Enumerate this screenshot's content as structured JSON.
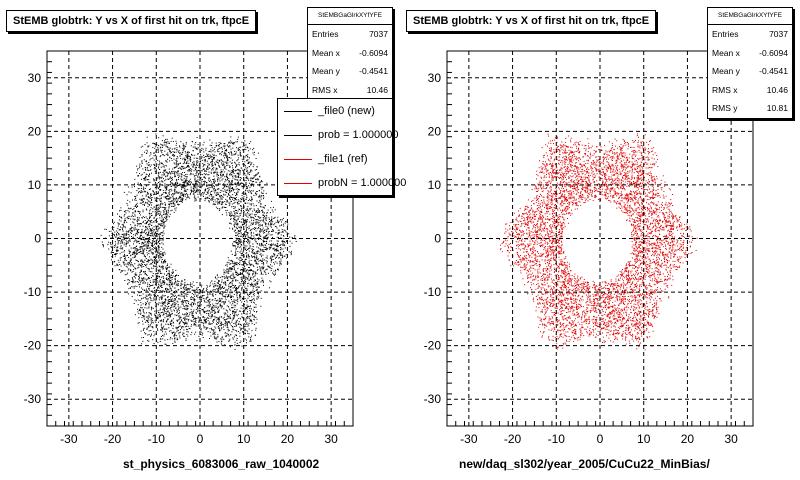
{
  "colors": {
    "ref_series": "#000000",
    "new_series": "#e00000",
    "frame": "#000000",
    "grid": "#000000"
  },
  "panels": [
    {
      "title": "StEMB globtrk: Y vs X of first hit on trk, ftpcE",
      "stats": {
        "header": "StEMBGaGlrkXYfYFE",
        "rows": [
          {
            "label": "Entries",
            "value": "7037"
          },
          {
            "label": "Mean x",
            "value": "-0.6094"
          },
          {
            "label": "Mean y",
            "value": "-0.4541"
          },
          {
            "label": "RMS x",
            "value": "10.46"
          }
        ]
      },
      "xlabel": "st_physics_6083006_raw_1040002",
      "legend": [
        {
          "label": "_file0 (new)",
          "color": "#000000"
        },
        {
          "label": "prob = 1.000000",
          "color": "#000000"
        },
        {
          "label": "_file1 (ref)",
          "color": "#e00000"
        },
        {
          "label": "probN = 1.000000",
          "color": "#e00000"
        }
      ]
    },
    {
      "title": "StEMB globtrk: Y vs X of first hit on trk, ftpcE",
      "stats": {
        "header": "StEMBGaGlrkXYfYFE",
        "rows": [
          {
            "label": "Entries",
            "value": "7037"
          },
          {
            "label": "Mean x",
            "value": "-0.6094"
          },
          {
            "label": "Mean y",
            "value": "-0.4541"
          },
          {
            "label": "RMS x",
            "value": "10.46"
          },
          {
            "label": "RMS y",
            "value": "10.81"
          }
        ]
      },
      "xlabel": "new/daq_sl302/year_2005/CuCu22_MinBias/"
    }
  ],
  "chart_data": [
    {
      "type": "scatter",
      "title": "StEMB globtrk: Y vs X of first hit on trk, ftpcE",
      "xlabel": "st_physics_6083006_raw_1040002",
      "ylabel": "",
      "xlim": [
        -35,
        35
      ],
      "ylim": [
        -35,
        35
      ],
      "xticks": [
        -30,
        -20,
        -10,
        0,
        10,
        20,
        30
      ],
      "yticks": [
        -30,
        -20,
        -10,
        0,
        10,
        20,
        30
      ],
      "grid": true,
      "legend_position": "top-right",
      "series": [
        {
          "name": "_file0 (new)",
          "color": "#000000",
          "distribution": "annulus",
          "r_inner": 8,
          "r_outer": 23,
          "count": 7037
        }
      ]
    },
    {
      "type": "scatter",
      "title": "StEMB globtrk: Y vs X of first hit on trk, ftpcE",
      "xlabel": "new/daq_sl302/year_2005/CuCu22_MinBias/",
      "ylabel": "",
      "xlim": [
        -35,
        35
      ],
      "ylim": [
        -35,
        35
      ],
      "xticks": [
        -30,
        -20,
        -10,
        0,
        10,
        20,
        30
      ],
      "yticks": [
        -30,
        -20,
        -10,
        0,
        10,
        20,
        30
      ],
      "grid": true,
      "series": [
        {
          "name": "_file1 (ref)",
          "color": "#e00000",
          "distribution": "annulus",
          "r_inner": 8,
          "r_outer": 23,
          "count": 7037
        }
      ]
    }
  ]
}
